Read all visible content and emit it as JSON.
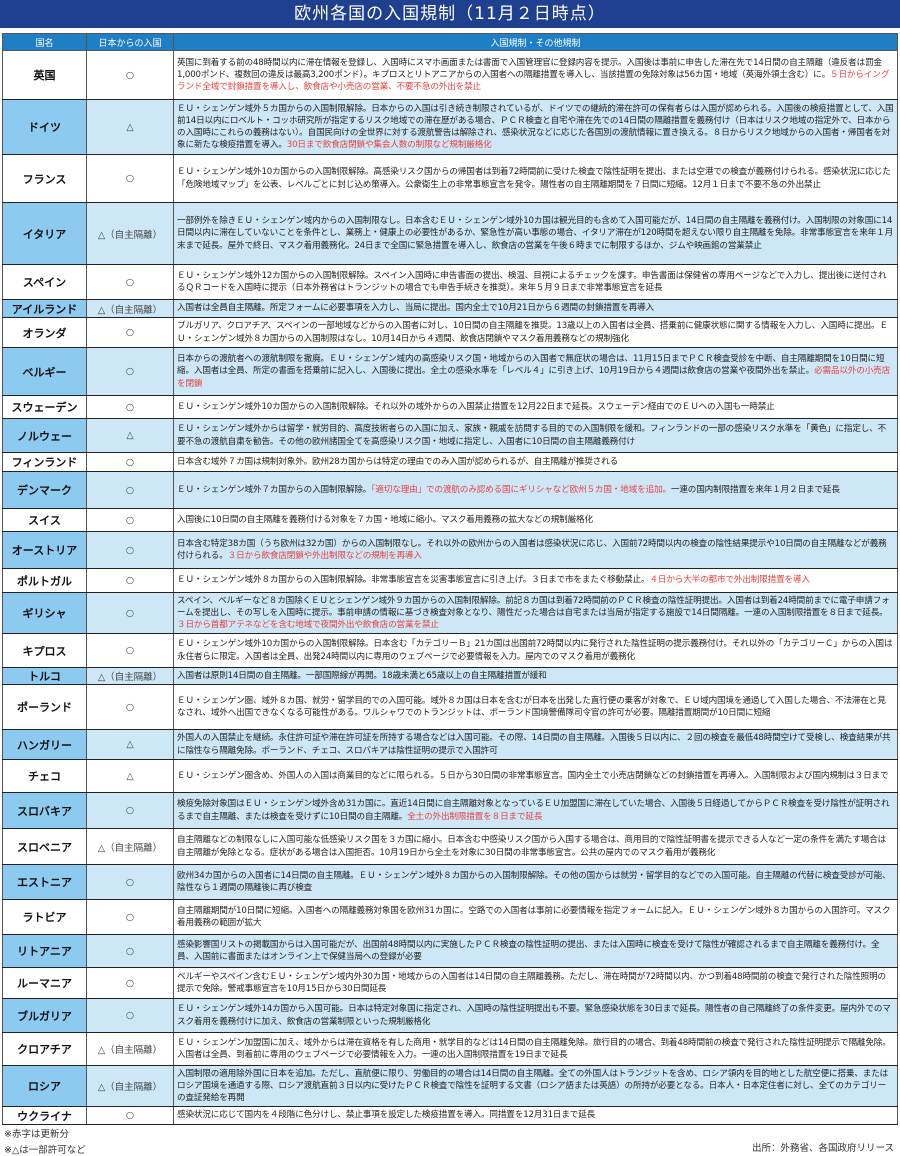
{
  "title": "欧州各国の入国規制（11月２日時点）",
  "headers": {
    "country": "国名",
    "entry": "日本からの入国",
    "rules": "入国規制・その他規制"
  },
  "rows": [
    {
      "country": "英国",
      "entry": "○",
      "text": "英国に到着する前の48時間以内に滞在情報を登録し、入国時にスマホ画面または書面で入国管理官に登録内容を提示。入国後は事前に申告した滞在先で14日間の自主隔離（違反者は罰金1,000ポンド、複数回の違反は最高3,200ポンド）。キプロスとリトアニアからの入国者への隔離措置を導入し、当該措置の免除対象は56カ国・地域（英海外領土含む）に。",
      "red": "５日からイングランド全域で封鎖措置を導入し、飲食店や小売店の営業、不要不急の外出を禁止",
      "after": ""
    },
    {
      "country": "ドイツ",
      "entry": "△",
      "text": "ＥＵ・シェンゲン域外５カ国からの入国制限解除。日本からの入国は引き続き制限されているが、ドイツでの継続的滞在許可の保有者らは入国が認められる。入国後の検疫措置として、入国前14日以内にロベルト・コッホ研究所が指定するリスク地域での滞在歴がある場合、ＰＣＲ検査と自宅や滞在先での14日間の隔離措置を義務付け（日本はリスク地域の指定外で、日本からの入国時にこれらの義務はない）。自国民向けの全世界に対する渡航警告は解除され、感染状況などに応じた各国別の渡航情報に置き換える。８日からリスク地域からの入国者・帰国者を対象に新たな検疫措置を導入。",
      "red": "30日まで飲食店閉鎖や集会人数の制限など規制厳格化",
      "after": ""
    },
    {
      "country": "フランス",
      "entry": "○",
      "text": "ＥＵ・シェンゲン域外10カ国からの入国制限解除。高感染リスク国からの帰国者は到着72時間前に受けた検査で陰性証明を提出、または空港での検査が義務付けられる。感染状況に応じた「危険地域マップ」を公表、レベルごとに封じ込め策導入。公衆衛生上の非常事態宣言を発令。陽性者の自主隔離期間を７日間に短縮。12月１日まで不要不急の外出禁止",
      "red": "",
      "after": ""
    },
    {
      "country": "イタリア",
      "entry": "△（自主隔離）",
      "text": "一部例外を除きＥＵ・シェンゲン域内からの入国制限なし。日本含むＥＵ・シェンゲン域外10カ国は観光目的も含めて入国可能だが、14日間の自主隔離を義務付け。入国制限の対象国に14日間以内に滞在していないことを条件とし、業務上・健康上の必要性があるか、緊急性が高い事態の場合、イタリア滞在が120時間を超えない限り自主隔離を免除。非常事態宣言を来年１月末まで延長。屋外で終日、マスク着用義務化。24日まで全国に緊急措置を導入し、飲食店の営業を午後６時までに制限するほか、ジムや映画館の営業禁止",
      "red": "",
      "after": ""
    },
    {
      "country": "スペイン",
      "entry": "○",
      "text": "ＥＵ・シェンゲン域外12カ国からの入国制限解除。スペイン入国時に申告書面の提出、検温、目視によるチェックを課す。申告書面は保健省の専用ページなどで入力し、提出後に送付されるＱＲコードを入国時に提示（日本外務省はトランジットの場合でも申告手続きを推奨）。来年５月９日まで非常事態宣言を延長",
      "red": "",
      "after": ""
    },
    {
      "country": "アイルランド",
      "entry": "△（自主隔離）",
      "text": "入国者は全員自主隔離。所定フォームに必要事項を入力し、当局に提出。国内全土で10月21日から６週間の封鎖措置を再導入",
      "red": "",
      "after": ""
    },
    {
      "country": "オランダ",
      "entry": "○",
      "text": "ブルガリア、クロアチア、スペインの一部地域などからの入国者に対し、10日間の自主隔離を推奨。13歳以上の入国者は全員、搭乗前に健康状態に関する情報を入力し、入国時に提出。ＥＵ・シェンゲン域外８カ国からの入国制限はなし。10月14日から４週間、飲食店閉鎖やマスク着用義務などの規制強化",
      "red": "",
      "after": ""
    },
    {
      "country": "ベルギー",
      "entry": "○",
      "text": "日本からの渡航者への渡航制限を撤廃。ＥＵ・シェンゲン域内の高感染リスク国・地域からの入国者で無症状の場合は、11月15日までＰＣＲ検査受診を中断、自主隔離期間を10日間に短縮。入国者は全員、所定の書面を搭乗前に記入し、入国後に提出。全土の感染水準を「レベル４」に引き上げ、10月19日から４週間は飲食店の営業や夜間外出を禁止。",
      "red": "必需品以外の小売店を閉鎖",
      "after": ""
    },
    {
      "country": "スウェーデン",
      "entry": "○",
      "text": "ＥＵ・シェンゲン域外10カ国からの入国制限解除。それ以外の域外からの入国禁止措置を12月22日まで延長。スウェーデン経由でのＥＵへの入国も一時禁止",
      "red": "",
      "after": ""
    },
    {
      "country": "ノルウェー",
      "entry": "△",
      "text": "ＥＵ・シェンゲン域外からは留学・就労目的、高度技術者らの入国に加え、家族・親戚を訪問する目的での入国制限を緩和。フィンランドの一部の感染リスク水準を「黄色」に指定し、不要不急の渡航自粛を勧告。その他の欧州諸国全てを高感染リスク国・地域に指定し、入国者に10日間の自主隔離義務付け",
      "red": "",
      "after": ""
    },
    {
      "country": "フィンランド",
      "entry": "○",
      "text": "日本含む域外７カ国は規制対象外。欧州28カ国からは特定の理由でのみ入国が認められるが、自主隔離が推奨される",
      "red": "",
      "after": ""
    },
    {
      "country": "デンマーク",
      "entry": "○",
      "text": "ＥＵ・シェンゲン域外７カ国からの入国制限解除。",
      "red": "「適切な理由」での渡航のみ認める国にギリシャなど欧州５カ国・地域を追加。",
      "after": "一連の国内制限措置を来年１月２日まで延長"
    },
    {
      "country": "スイス",
      "entry": "○",
      "text": "入国後に10日間の自主隔離を義務付ける対象を７カ国・地域に縮小。マスク着用義務の拡大などの規制厳格化",
      "red": "",
      "after": ""
    },
    {
      "country": "オーストリア",
      "entry": "○",
      "text": "日本含む特定38カ国（うち欧州は32カ国）からの入国制限なし。それ以外の欧州からの入国者は感染状況に応じ、入国前72時間以内の検査の陰性結果提示や10日間の自主隔離などが義務付けられる。",
      "red": "３日から飲食店閉鎖や外出制限などの規制を再導入",
      "after": ""
    },
    {
      "country": "ポルトガル",
      "entry": "○",
      "text": "ＥＵ・シェンゲン域外８カ国からの入国制限解除。非常事態宣言を災害事態宣言に引き上げ。３日まで市をまたぐ移動禁止。",
      "red": "４日から大半の都市で外出制限措置を導入",
      "after": ""
    },
    {
      "country": "ギリシャ",
      "entry": "○",
      "text": "スペイン、ベルギーなど８カ国除くＥＵとシェンゲン域外９カ国からの入国制限解除。前記８カ国は到着72時間前のＰＣＲ検査の陰性証明提出。入国者は到着24時間前までに電子申請フォームを提出し、その写しを入国時に提示。事前申請の情報に基づき検査対象となり、陽性だった場合は自宅または当局が指定する施設で14日間隔離。一連の入国制限措置を８日まで延長。",
      "red": "３日から首都アテネなどを含む地域で夜間外出や飲食店の営業を禁止",
      "after": ""
    },
    {
      "country": "キプロス",
      "entry": "○",
      "text": "ＥＵ・シェンゲン域外10カ国からの入国制限解除。日本含む「カテゴリーＢ」21カ国は出国前72時間以内に発行された陰性証明の提示義務付け。それ以外の「カテゴリーＣ」からの入国は永住者らに限定。入国者は全員、出発24時間以内に専用のウェブページで必要情報を入力。屋内でのマスク着用が義務化",
      "red": "",
      "after": ""
    },
    {
      "country": "トルコ",
      "entry": "△（自主隔離）",
      "text": "入国者は原則14日間の自主隔離。一部国際線が再開。18歳未満と65歳以上の自主隔離措置が緩和",
      "red": "",
      "after": ""
    },
    {
      "country": "ポーランド",
      "entry": "○",
      "text": "ＥＵ・シェンゲン圏、域外８カ国、就労・留学目的での入国可能。域外８カ国は日本を含むが日本を出発した直行便の乗客が対象で、ＥＵ域内国境を通過して入国した場合、不法滞在と見なされ、域外へ出国できなくなる可能性がある。ワルシャワでのトランジットは、ポーランド国境警備隊司令官の許可が必要。隔離措置期間が10日間に短縮",
      "red": "",
      "after": ""
    },
    {
      "country": "ハンガリー",
      "entry": "△",
      "text": "外国人の入国禁止を継続。永住許可証や滞在許可証を所持する場合などは入国可能。その際、14日間の自主隔離。入国後５日以内に、２回の検査を最低48時間空けて受検し、検査結果が共に陰性なら隔離免除。ポーランド、チェコ、スロバキアは陰性証明の提示で入国許可",
      "red": "",
      "after": ""
    },
    {
      "country": "チェコ",
      "entry": "△",
      "text": "ＥＵ・シェンゲン圏含め、外国人の入国は商業目的などに限られる。５日から30日間の非常事態宣言。国内全土で小売店閉鎖などの封鎖措置を再導入。入国制限および国内規制は３日まで",
      "red": "",
      "after": ""
    },
    {
      "country": "スロバキア",
      "entry": "○",
      "text": "検疫免除対象国はＥＵ・シェンゲン域外含め31カ国に。直近14日間に自主隔離対象となっているＥＵ加盟国に滞在していた場合、入国後５日経過してからＰＣＲ検査を受け陰性が証明されるまで自主隔離、または検査を受けずに10日間の自主隔離。",
      "red": "全土の外出制限措置を８日まで延長",
      "after": ""
    },
    {
      "country": "スロベニア",
      "entry": "△（自主隔離）",
      "text": "自主隔離などの制限なしに入国可能な低感染リスク国を３カ国に縮小。日本含む中感染リスク国から入国する場合は、商用目的で陰性証明書を提示できる人など一定の条件を満たす場合は自主隔離が免除となる。症状がある場合は入国拒否。10月19日から全土を対象に30日間の非常事態宣言。公共の屋内でのマスク着用が義務化",
      "red": "",
      "after": ""
    },
    {
      "country": "エストニア",
      "entry": "○",
      "text": "欧州34カ国からの入国者に14日間の自主隔離。ＥＵ・シェンゲン域外８カ国からの入国制限解除。その他の国からは就労・留学目的などでの入国可能。自主隔離の代替に検査受診が可能、陰性なら１週間の隔離後に再び検査",
      "red": "",
      "after": ""
    },
    {
      "country": "ラトビア",
      "entry": "○",
      "text": "自主隔離期間が10日間に短縮。入国者への隔離義務対象国を欧州31カ国に。空路での入国者は事前に必要情報を指定フォームに記入。ＥＵ・シェンゲン域外８カ国からの入国許可。マスク着用義務の範囲が拡大",
      "red": "",
      "after": ""
    },
    {
      "country": "リトアニア",
      "entry": "○",
      "text": "感染影響国リストの掲載国からは入国可能だが、出国前48時間以内に実施したＰＣＲ検査の陰性証明の提出、または入国時に検査を受けて陰性が確認されるまで自主隔離を義務付け。全員、入国前に書面またはオンライン上で保健当局への登録が必要",
      "red": "",
      "after": ""
    },
    {
      "country": "ルーマニア",
      "entry": "○",
      "text": "ベルギーやスペイン含むＥＵ・シェンゲン域内外30カ国・地域からの入国者は14日間の自主隔離義務。ただし、滞在時間が72時間以内、かつ到着48時間前の検査で発行された陰性照明の提示で免除。警戒事態宣言を10月15日から30日間延長",
      "red": "",
      "after": ""
    },
    {
      "country": "ブルガリア",
      "entry": "○",
      "text": "ＥＵ・シェンゲン域外14カ国から入国可能。日本は特定対象国に指定され、入国時の陰性証明提出も不要。緊急感染状態を30日まで延長。陽性者の自己隔離終了の条件変更。屋内外でのマスク着用を義務付けに加え、飲食店の営業制限といった規制厳格化",
      "red": "",
      "after": ""
    },
    {
      "country": "クロアチア",
      "entry": "△（自主隔離）",
      "text": "ＥＵ・シェンゲン加盟国に加え、域外からは滞在資格を有した商用・就学目的などは14日間の自主隔離免除。旅行目的の場合、到着48時間前の検査で発行された陰性証明提示で隔離免除。入国者は全員、到着前に専用のウェブページで必要情報を入力。一連の出入国制限措置を19日まで延長",
      "red": "",
      "after": ""
    },
    {
      "country": "ロシア",
      "entry": "△（自主隔離）",
      "text": "入国制限の適用除外国に日本を追加。ただし、直航便に限り、労働目的の場合は14日間の自主隔離。全ての外国人はトランジットを含め、ロシア領内を目的地とした航空便に搭乗、またはロシア国境を通過する際、ロシア渡航直前３日以内に受けたＰＣＲ検査で陰性を証明する文書（ロシア語または英語）の所持が必要となる。日本人・日本定住者に対し、全てのカテゴリーの査証発給を再開",
      "red": "",
      "after": ""
    },
    {
      "country": "ウクライナ",
      "entry": "○",
      "text": "感染状況に応じて国内を４段階に色分けし、禁止事項を設定した検疫措置を導入。同措置を12月31日まで延長",
      "red": "",
      "after": ""
    }
  ],
  "footer": {
    "note1": "※赤字は更新分",
    "note2": "※△は一部許可など",
    "source": "出所：外務省、各国政府リリース"
  },
  "colors": {
    "title_bg": "#1f3f8f",
    "header_bg": "#1f7fc4",
    "alt_row": "#cde7f7",
    "alt_name": "#8ccbef",
    "update_red": "#e8403f"
  }
}
